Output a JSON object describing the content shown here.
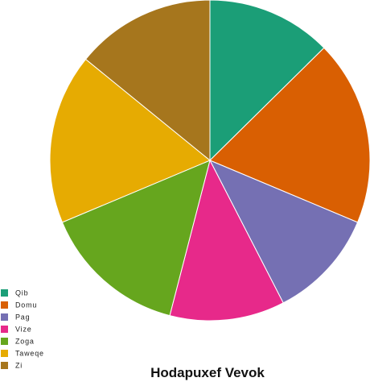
{
  "chart_data": {
    "type": "pie",
    "title": "Hodapuxef Vevok",
    "legend_position": "bottom-left",
    "start_angle": "12 o'clock",
    "direction": "clockwise",
    "slices": [
      {
        "label": "Qib",
        "value": 12.5,
        "color": "#1b9e77"
      },
      {
        "label": "Domu",
        "value": 18.5,
        "color": "#d95f02"
      },
      {
        "label": "Pag",
        "value": 11.0,
        "color": "#7570b3"
      },
      {
        "label": "Vize",
        "value": 11.5,
        "color": "#e7298a"
      },
      {
        "label": "Zoga",
        "value": 14.5,
        "color": "#66a61e"
      },
      {
        "label": "Taweqe",
        "value": 17.0,
        "color": "#e6ab02"
      },
      {
        "label": "Zi",
        "value": 14.0,
        "color": "#a6761d"
      }
    ]
  }
}
